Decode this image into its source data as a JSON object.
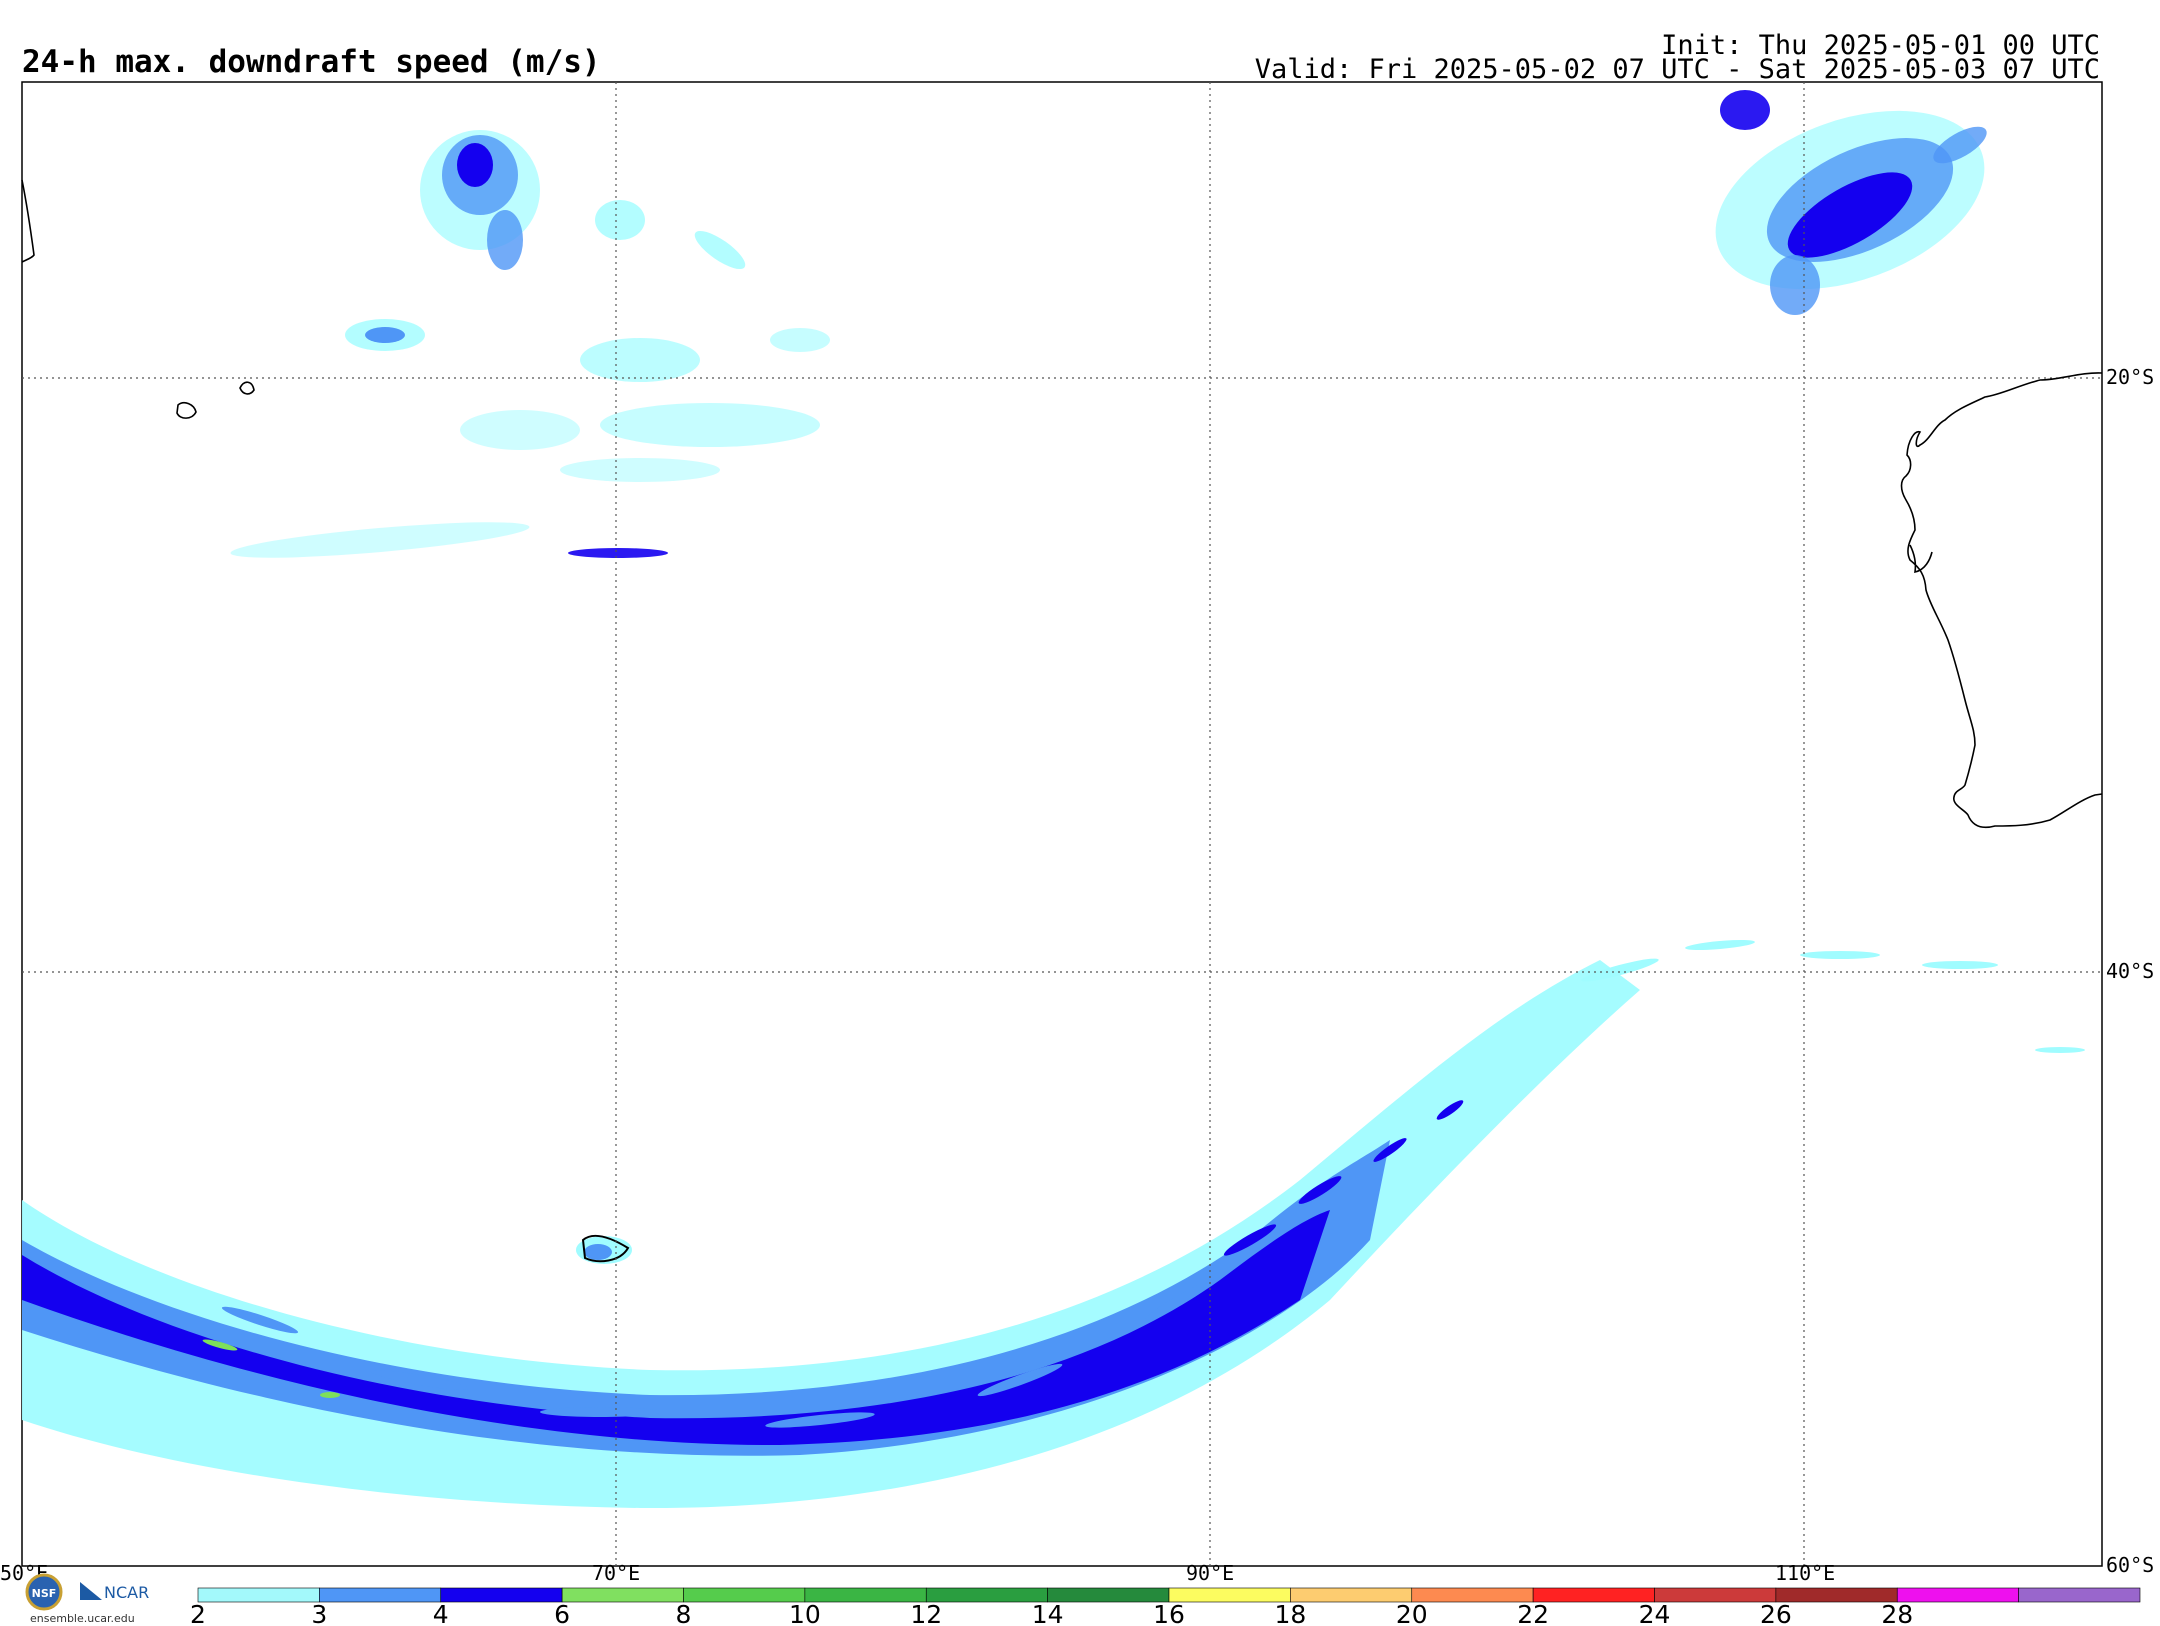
{
  "header": {
    "title": "24-h max. downdraft speed (m/s)",
    "init": "Init: Thu 2025-05-01 00 UTC",
    "valid": "Valid: Fri 2025-05-02 07 UTC - Sat 2025-05-03 07 UTC"
  },
  "map": {
    "lon_labels": [
      "50°E",
      "70°E",
      "90°E",
      "110°E"
    ],
    "lat_labels": [
      "20°S",
      "40°S",
      "60°S"
    ],
    "colors": {
      "c2": "#9ffcff",
      "c3": "#4f96f6",
      "c4": "#1400ef",
      "c6": "#7ee05a",
      "coast": "#000000",
      "grid": "#555555"
    }
  },
  "colorbar": {
    "ticks": [
      "2",
      "3",
      "4",
      "6",
      "8",
      "10",
      "12",
      "14",
      "16",
      "18",
      "20",
      "22",
      "24",
      "26",
      "28"
    ],
    "colors": [
      "#a3f9fb",
      "#4f96f6",
      "#1400ef",
      "#80e060",
      "#55cc4c",
      "#3ab544",
      "#2a9e40",
      "#258a3c",
      "#fcfc60",
      "#fdcc70",
      "#fd8a50",
      "#ff2222",
      "#cc3a3a",
      "#a02a2a",
      "#ee10ee",
      "#9966cc"
    ]
  },
  "footer": {
    "logo_nsf": "NSF",
    "logo_ncar": "NCAR",
    "credit": "ensemble.ucar.edu"
  }
}
